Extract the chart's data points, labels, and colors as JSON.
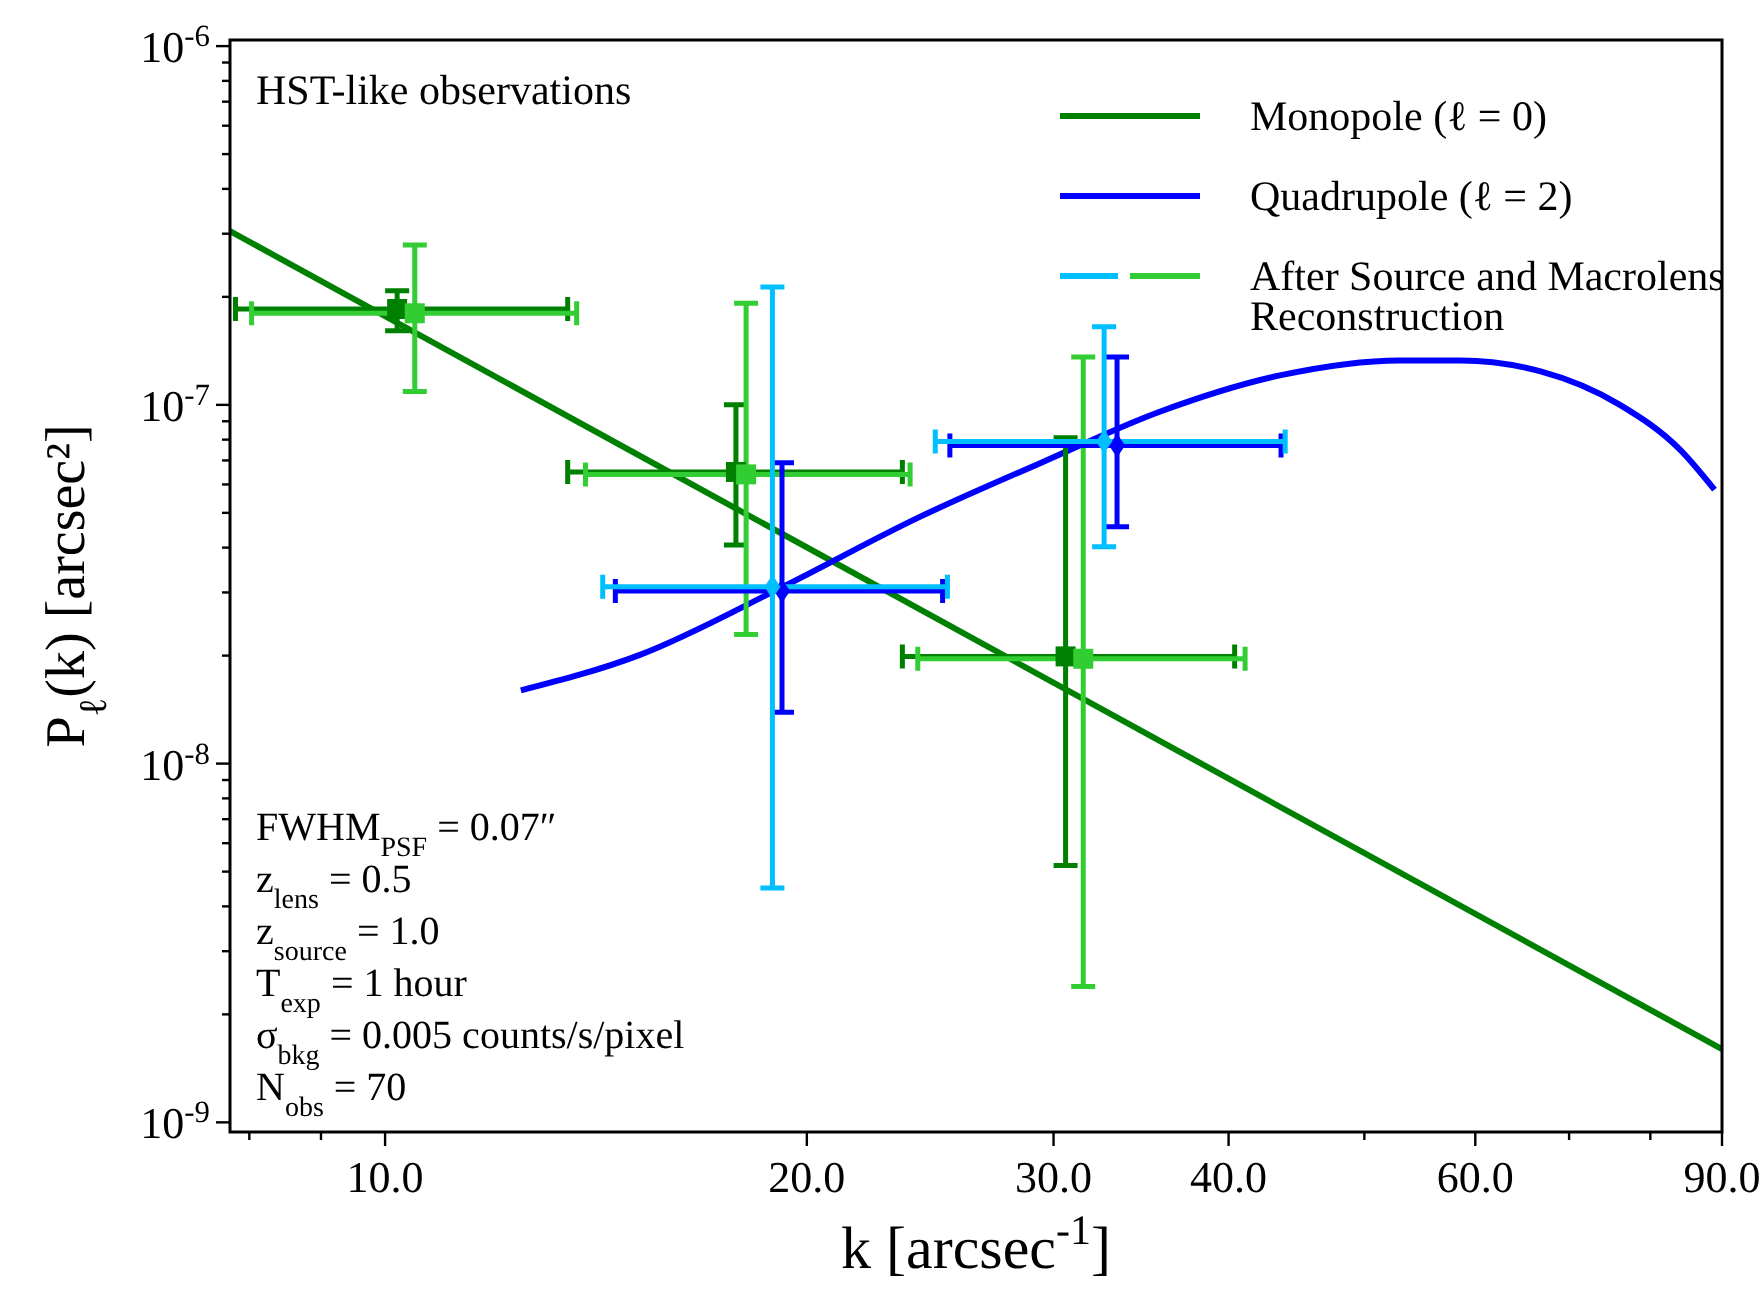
{
  "chart_data": {
    "type": "scatter",
    "xlabel": "k [arcsec$^{-1}$]",
    "ylabel": "P$_{ℓ}$(k) [arcsec²]",
    "log": "xy",
    "grid": false,
    "legend": "top right",
    "xlim": [
      7.75,
      90
    ],
    "ylim": [
      9.4e-10,
      1.04e-06
    ],
    "xticks": [
      {
        "value": 8,
        "label": null
      },
      {
        "value": 9,
        "label": null
      },
      {
        "value": 10,
        "label": "10.0"
      },
      {
        "value": 20,
        "label": "20.0"
      },
      {
        "value": 30,
        "label": "30.0"
      },
      {
        "value": 40,
        "label": "40.0"
      },
      {
        "value": 50,
        "label": null
      },
      {
        "value": 60,
        "label": "60.0"
      },
      {
        "value": 70,
        "label": null
      },
      {
        "value": 80,
        "label": null
      },
      {
        "value": 90,
        "label": "90.0"
      }
    ],
    "yticks": [
      {
        "value": 1e-09,
        "label": "10$^{-9}$"
      },
      {
        "value": 2e-09,
        "label": null
      },
      {
        "value": 3e-09,
        "label": null
      },
      {
        "value": 4e-09,
        "label": null
      },
      {
        "value": 5e-09,
        "label": null
      },
      {
        "value": 6e-09,
        "label": null
      },
      {
        "value": 7e-09,
        "label": null
      },
      {
        "value": 8e-09,
        "label": null
      },
      {
        "value": 9e-09,
        "label": null
      },
      {
        "value": 1e-08,
        "label": "10$^{-8}$"
      },
      {
        "value": 2e-08,
        "label": null
      },
      {
        "value": 3e-08,
        "label": null
      },
      {
        "value": 4e-08,
        "label": null
      },
      {
        "value": 5e-08,
        "label": null
      },
      {
        "value": 6e-08,
        "label": null
      },
      {
        "value": 7e-08,
        "label": null
      },
      {
        "value": 8e-08,
        "label": null
      },
      {
        "value": 9e-08,
        "label": null
      },
      {
        "value": 1e-07,
        "label": "10$^{-7}$"
      },
      {
        "value": 2e-07,
        "label": null
      },
      {
        "value": 3e-07,
        "label": null
      },
      {
        "value": 4e-07,
        "label": null
      },
      {
        "value": 5e-07,
        "label": null
      },
      {
        "value": 6e-07,
        "label": null
      },
      {
        "value": 7e-07,
        "label": null
      },
      {
        "value": 8e-07,
        "label": null
      },
      {
        "value": 9e-07,
        "label": null
      },
      {
        "value": 1e-06,
        "label": "10$^{-6}$"
      }
    ],
    "series": [
      {
        "type": "line",
        "name": "Monopole (ℓ = 0)",
        "color": "#008000",
        "line_style": "solid",
        "marker": "none",
        "x": [
          7.75,
          90
        ],
        "values": [
          3.05e-07,
          1.6e-09
        ]
      },
      {
        "type": "line",
        "name": "Quadrupole (ℓ = 2)",
        "color": "#0000ff",
        "line_style": "solid",
        "marker": "none",
        "x": [
          12.5,
          15.2,
          19.1,
          24.1,
          29.4,
          35.8,
          43.6,
          53.0,
          58.5,
          66.8,
          76.1,
          84.0,
          88.9
        ],
        "values": [
          1.6e-08,
          2.01e-08,
          3.07e-08,
          4.88e-08,
          6.9e-08,
          9.6e-08,
          1.21e-07,
          1.33e-07,
          1.33e-07,
          1.24e-07,
          1e-07,
          7.5e-08,
          5.8e-08
        ]
      },
      {
        "color": "#008000",
        "marker": "square",
        "x": [
          10.2,
          17.8,
          30.6
        ],
        "values": [
          1.85e-07,
          6.5e-08,
          1.99e-08
        ],
        "errors": [
          [
            1.61e-07,
            2.08e-07
          ],
          [
            4.07e-08,
            1e-07
          ],
          [
            5.2e-09,
            8.1e-08
          ]
        ],
        "xerrors": [
          [
            7.82,
            13.5
          ],
          [
            13.5,
            23.4
          ],
          [
            23.4,
            40.4
          ]
        ]
      },
      {
        "name": "After Source and Macrolens Reconstruction",
        "color": "#32cd32",
        "marker": "square",
        "x": [
          10.5,
          18.1,
          31.5
        ],
        "values": [
          1.8e-07,
          6.4e-08,
          1.96e-08
        ],
        "errors": [
          [
            1.09e-07,
            2.79e-07
          ],
          [
            2.29e-08,
            1.92e-07
          ],
          [
            2.39e-09,
            1.36e-07
          ]
        ],
        "xerrors": [
          [
            8.03,
            13.7
          ],
          [
            13.9,
            23.7
          ],
          [
            24.0,
            41.1
          ]
        ]
      },
      {
        "color": "#0000ff",
        "marker": "diamond",
        "x": [
          19.2,
          33.3
        ],
        "values": [
          3.03e-08,
          7.7e-08
        ],
        "errors": [
          [
            1.39e-08,
            6.9e-08
          ],
          [
            4.57e-08,
            1.36e-07
          ]
        ],
        "xerrors": [
          [
            14.6,
            25.0
          ],
          [
            25.3,
            43.6
          ]
        ]
      },
      {
        "color": "#00bfff",
        "marker": "diamond",
        "x": [
          18.9,
          32.6
        ],
        "values": [
          3.11e-08,
          7.9e-08
        ],
        "errors": [
          [
            4.5e-09,
            2.13e-07
          ],
          [
            4.02e-08,
            1.65e-07
          ]
        ],
        "xerrors": [
          [
            14.3,
            25.2
          ],
          [
            24.7,
            43.9
          ]
        ]
      }
    ],
    "annotations": [
      "HST-like observations",
      "FWHM$_{PSF}$ = 0.07″",
      "z$_{lens}$ = 0.5",
      "z$_{source}$ = 1.0",
      "T$_{exp}$ = 1 hour",
      "σ$_{bkg}$ = 0.005 counts/s/pixel",
      "N$_{obs}$ = 70"
    ]
  }
}
